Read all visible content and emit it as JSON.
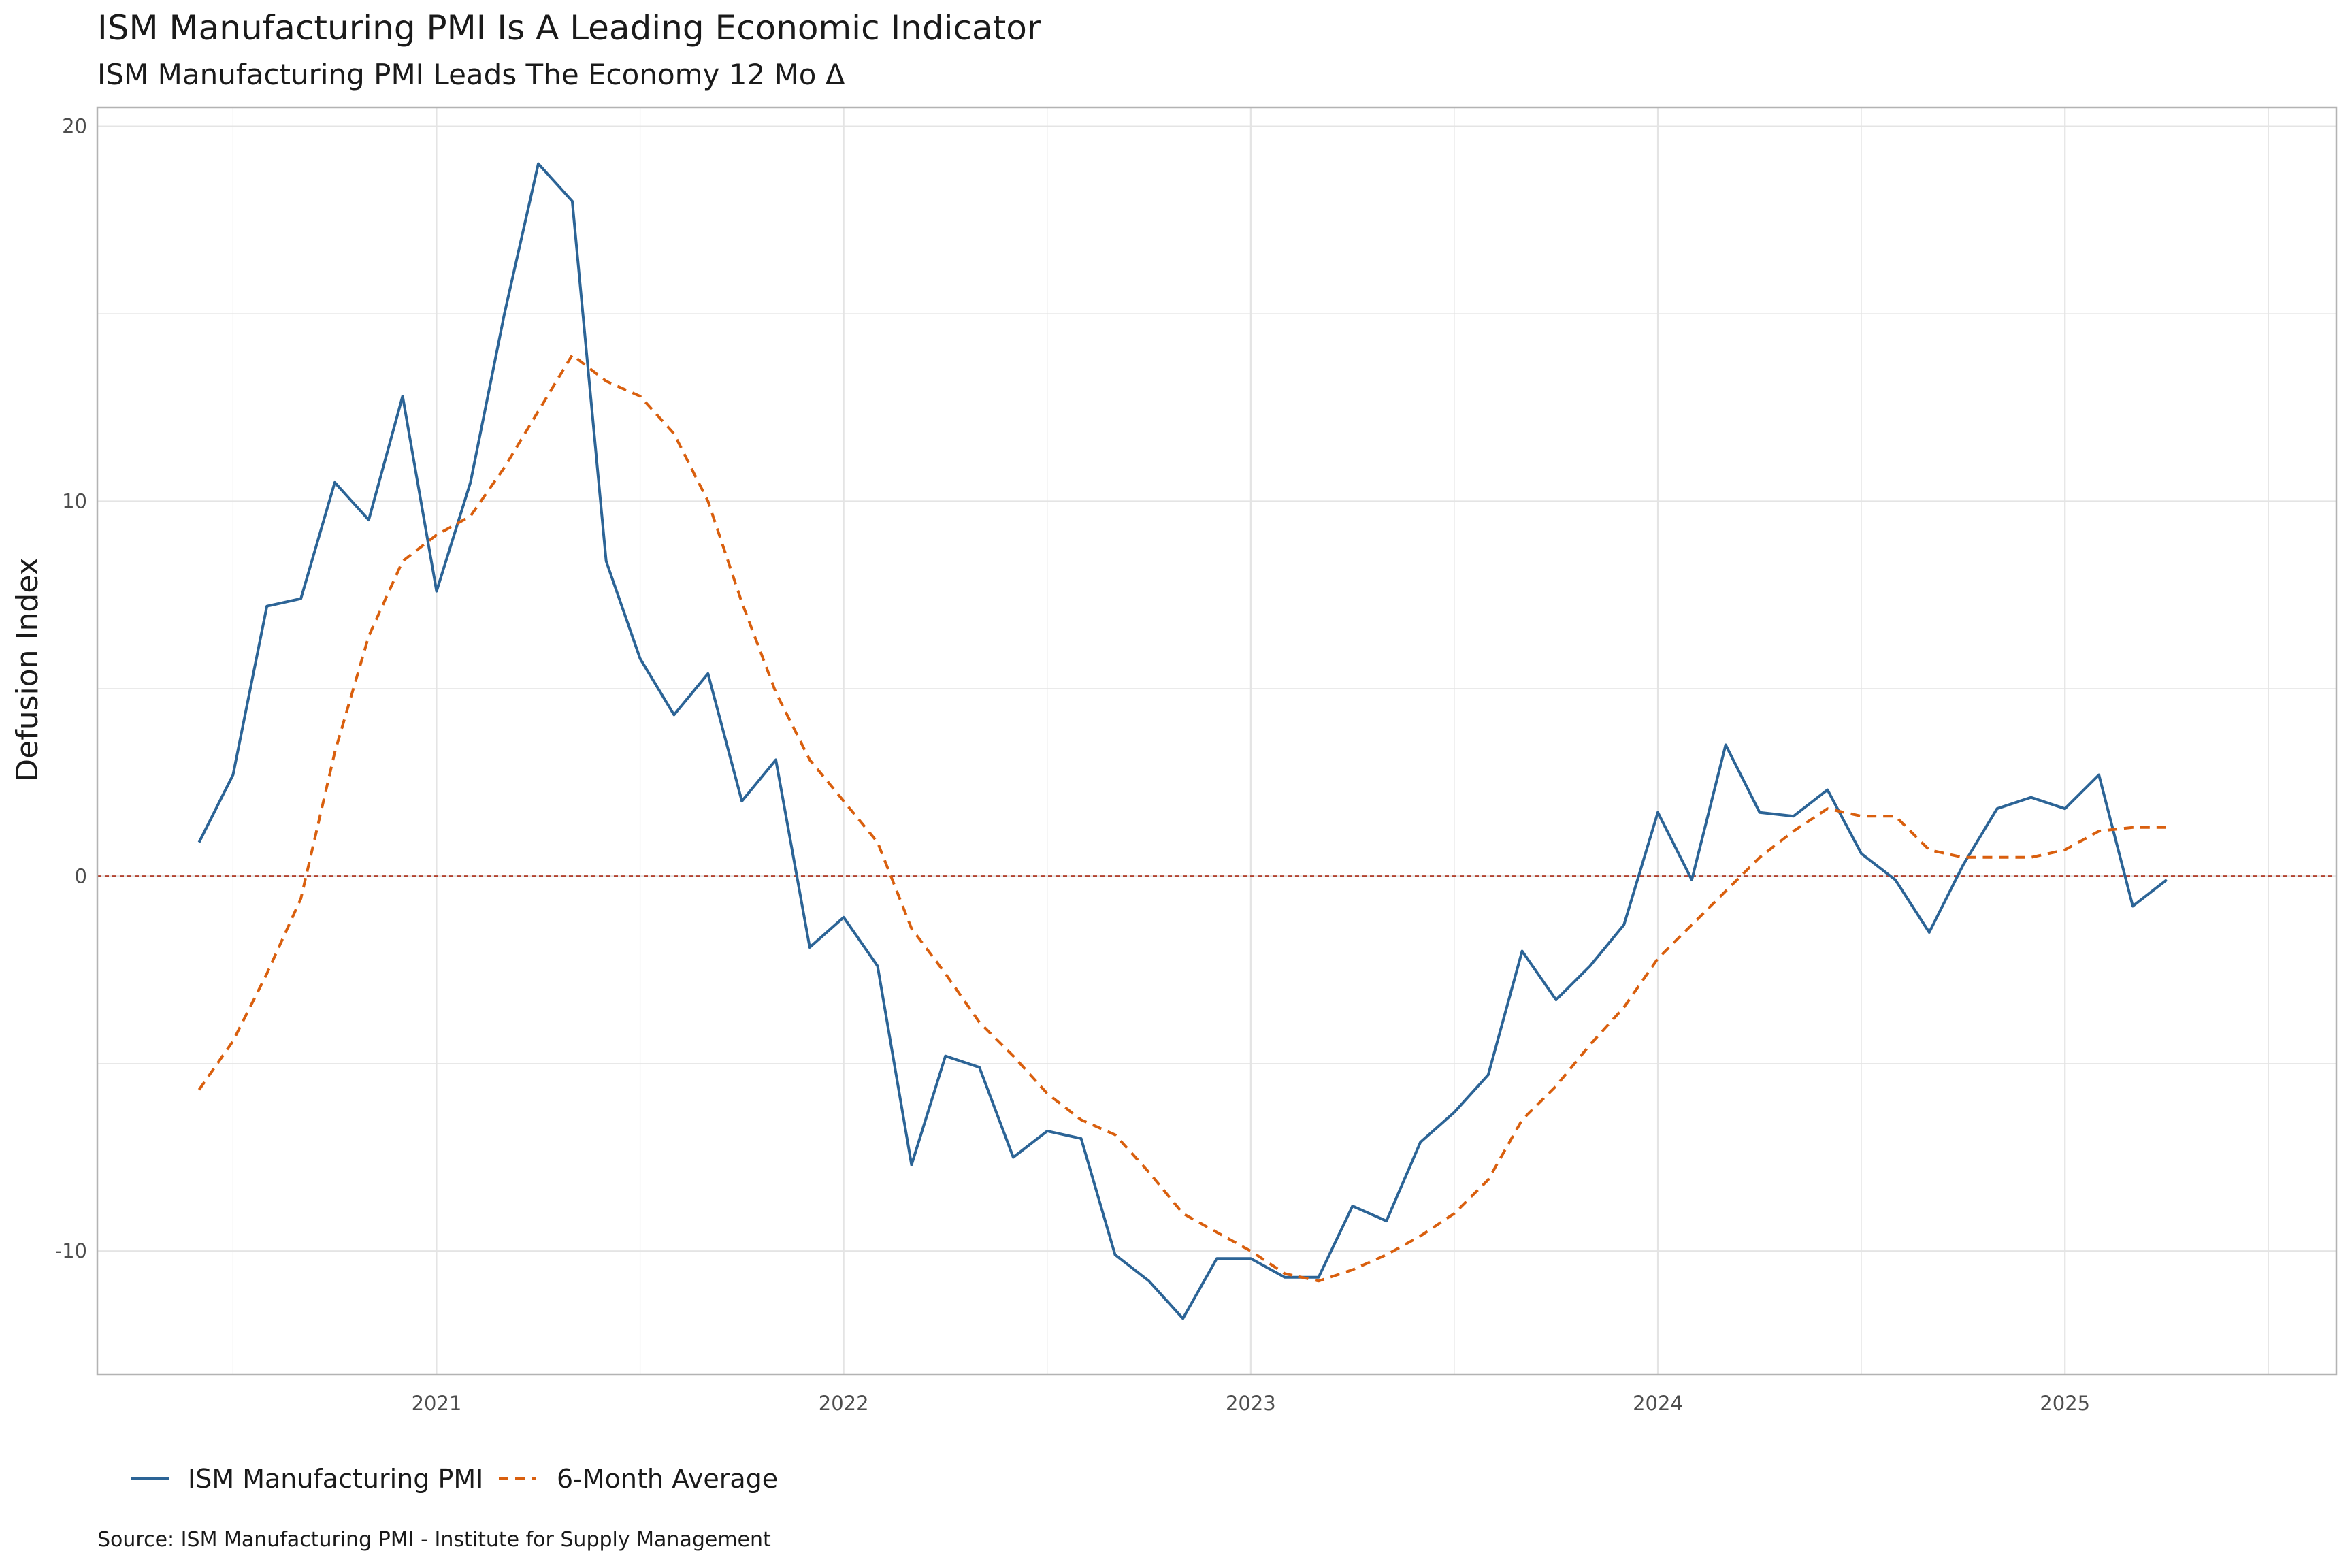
{
  "title": "ISM Manufacturing PMI Is A Leading Economic Indicator",
  "subtitle": "ISM Manufacturing PMI Leads The Economy 12 Mo Δ",
  "caption": "Source: ISM Manufacturing PMI - Institute for Supply Management",
  "colors": {
    "pmi": "#2c6496",
    "avg": "#d95f0e",
    "zero_line": "#b2432f",
    "grid": "#e4e4e4",
    "panel_border": "#b3b3b3"
  },
  "chart_data": {
    "type": "line",
    "xlabel": "",
    "ylabel": "Defusion Index",
    "ylim": [
      -13.3,
      20.5
    ],
    "y_ticks": [
      -10,
      0,
      10,
      20
    ],
    "x_ticks": [
      "2021",
      "2022",
      "2023",
      "2024",
      "2025"
    ],
    "x_range": [
      "2020-03",
      "2025-09"
    ],
    "grid": true,
    "reference_line": 0,
    "legend_position": "bottom-left",
    "x": [
      "2020-06",
      "2020-07",
      "2020-08",
      "2020-09",
      "2020-10",
      "2020-11",
      "2020-12",
      "2021-01",
      "2021-02",
      "2021-03",
      "2021-04",
      "2021-05",
      "2021-06",
      "2021-07",
      "2021-08",
      "2021-09",
      "2021-10",
      "2021-11",
      "2021-12",
      "2022-01",
      "2022-02",
      "2022-03",
      "2022-04",
      "2022-05",
      "2022-06",
      "2022-07",
      "2022-08",
      "2022-09",
      "2022-10",
      "2022-11",
      "2022-12",
      "2023-01",
      "2023-02",
      "2023-03",
      "2023-04",
      "2023-05",
      "2023-06",
      "2023-07",
      "2023-08",
      "2023-09",
      "2023-10",
      "2023-11",
      "2023-12",
      "2024-01",
      "2024-02",
      "2024-03",
      "2024-04",
      "2024-05",
      "2024-06",
      "2024-07",
      "2024-08",
      "2024-09",
      "2024-10",
      "2024-11",
      "2024-12",
      "2025-01",
      "2025-02",
      "2025-03",
      "2025-04"
    ],
    "series": [
      {
        "name": "ISM Manufacturing PMI",
        "style": "solid",
        "values": [
          0.9,
          2.7,
          7.2,
          7.4,
          10.5,
          9.5,
          12.8,
          7.6,
          10.5,
          15.0,
          19.0,
          18.0,
          8.4,
          5.8,
          4.3,
          5.4,
          2.0,
          3.1,
          -1.9,
          -1.1,
          -2.4,
          -7.7,
          -4.8,
          -5.1,
          -7.5,
          -6.8,
          -7.0,
          -10.1,
          -10.8,
          -11.8,
          -10.2,
          -10.2,
          -10.7,
          -10.7,
          -8.8,
          -9.2,
          -7.1,
          -6.3,
          -5.3,
          -2.0,
          -3.3,
          -2.4,
          -1.3,
          1.7,
          -0.1,
          3.5,
          1.7,
          1.6,
          2.3,
          0.6,
          -0.1,
          -1.5,
          0.3,
          1.8,
          2.1,
          1.8,
          2.7,
          -0.8,
          -0.1
        ]
      },
      {
        "name": "6-Month Average",
        "style": "dashed",
        "values": [
          -5.7,
          -4.4,
          -2.6,
          -0.6,
          3.3,
          6.4,
          8.4,
          9.1,
          9.6,
          10.9,
          12.4,
          13.9,
          13.2,
          12.8,
          11.8,
          10.0,
          7.3,
          4.9,
          3.1,
          2.0,
          0.9,
          -1.4,
          -2.6,
          -3.9,
          -4.8,
          -5.8,
          -6.5,
          -6.9,
          -7.9,
          -9.0,
          -9.5,
          -10.0,
          -10.6,
          -10.8,
          -10.5,
          -10.1,
          -9.6,
          -9.0,
          -8.1,
          -6.5,
          -5.6,
          -4.5,
          -3.5,
          -2.2,
          -1.3,
          -0.4,
          0.5,
          1.2,
          1.8,
          1.6,
          1.6,
          0.7,
          0.5,
          0.5,
          0.5,
          0.7,
          1.2,
          1.3,
          1.3
        ]
      }
    ]
  }
}
